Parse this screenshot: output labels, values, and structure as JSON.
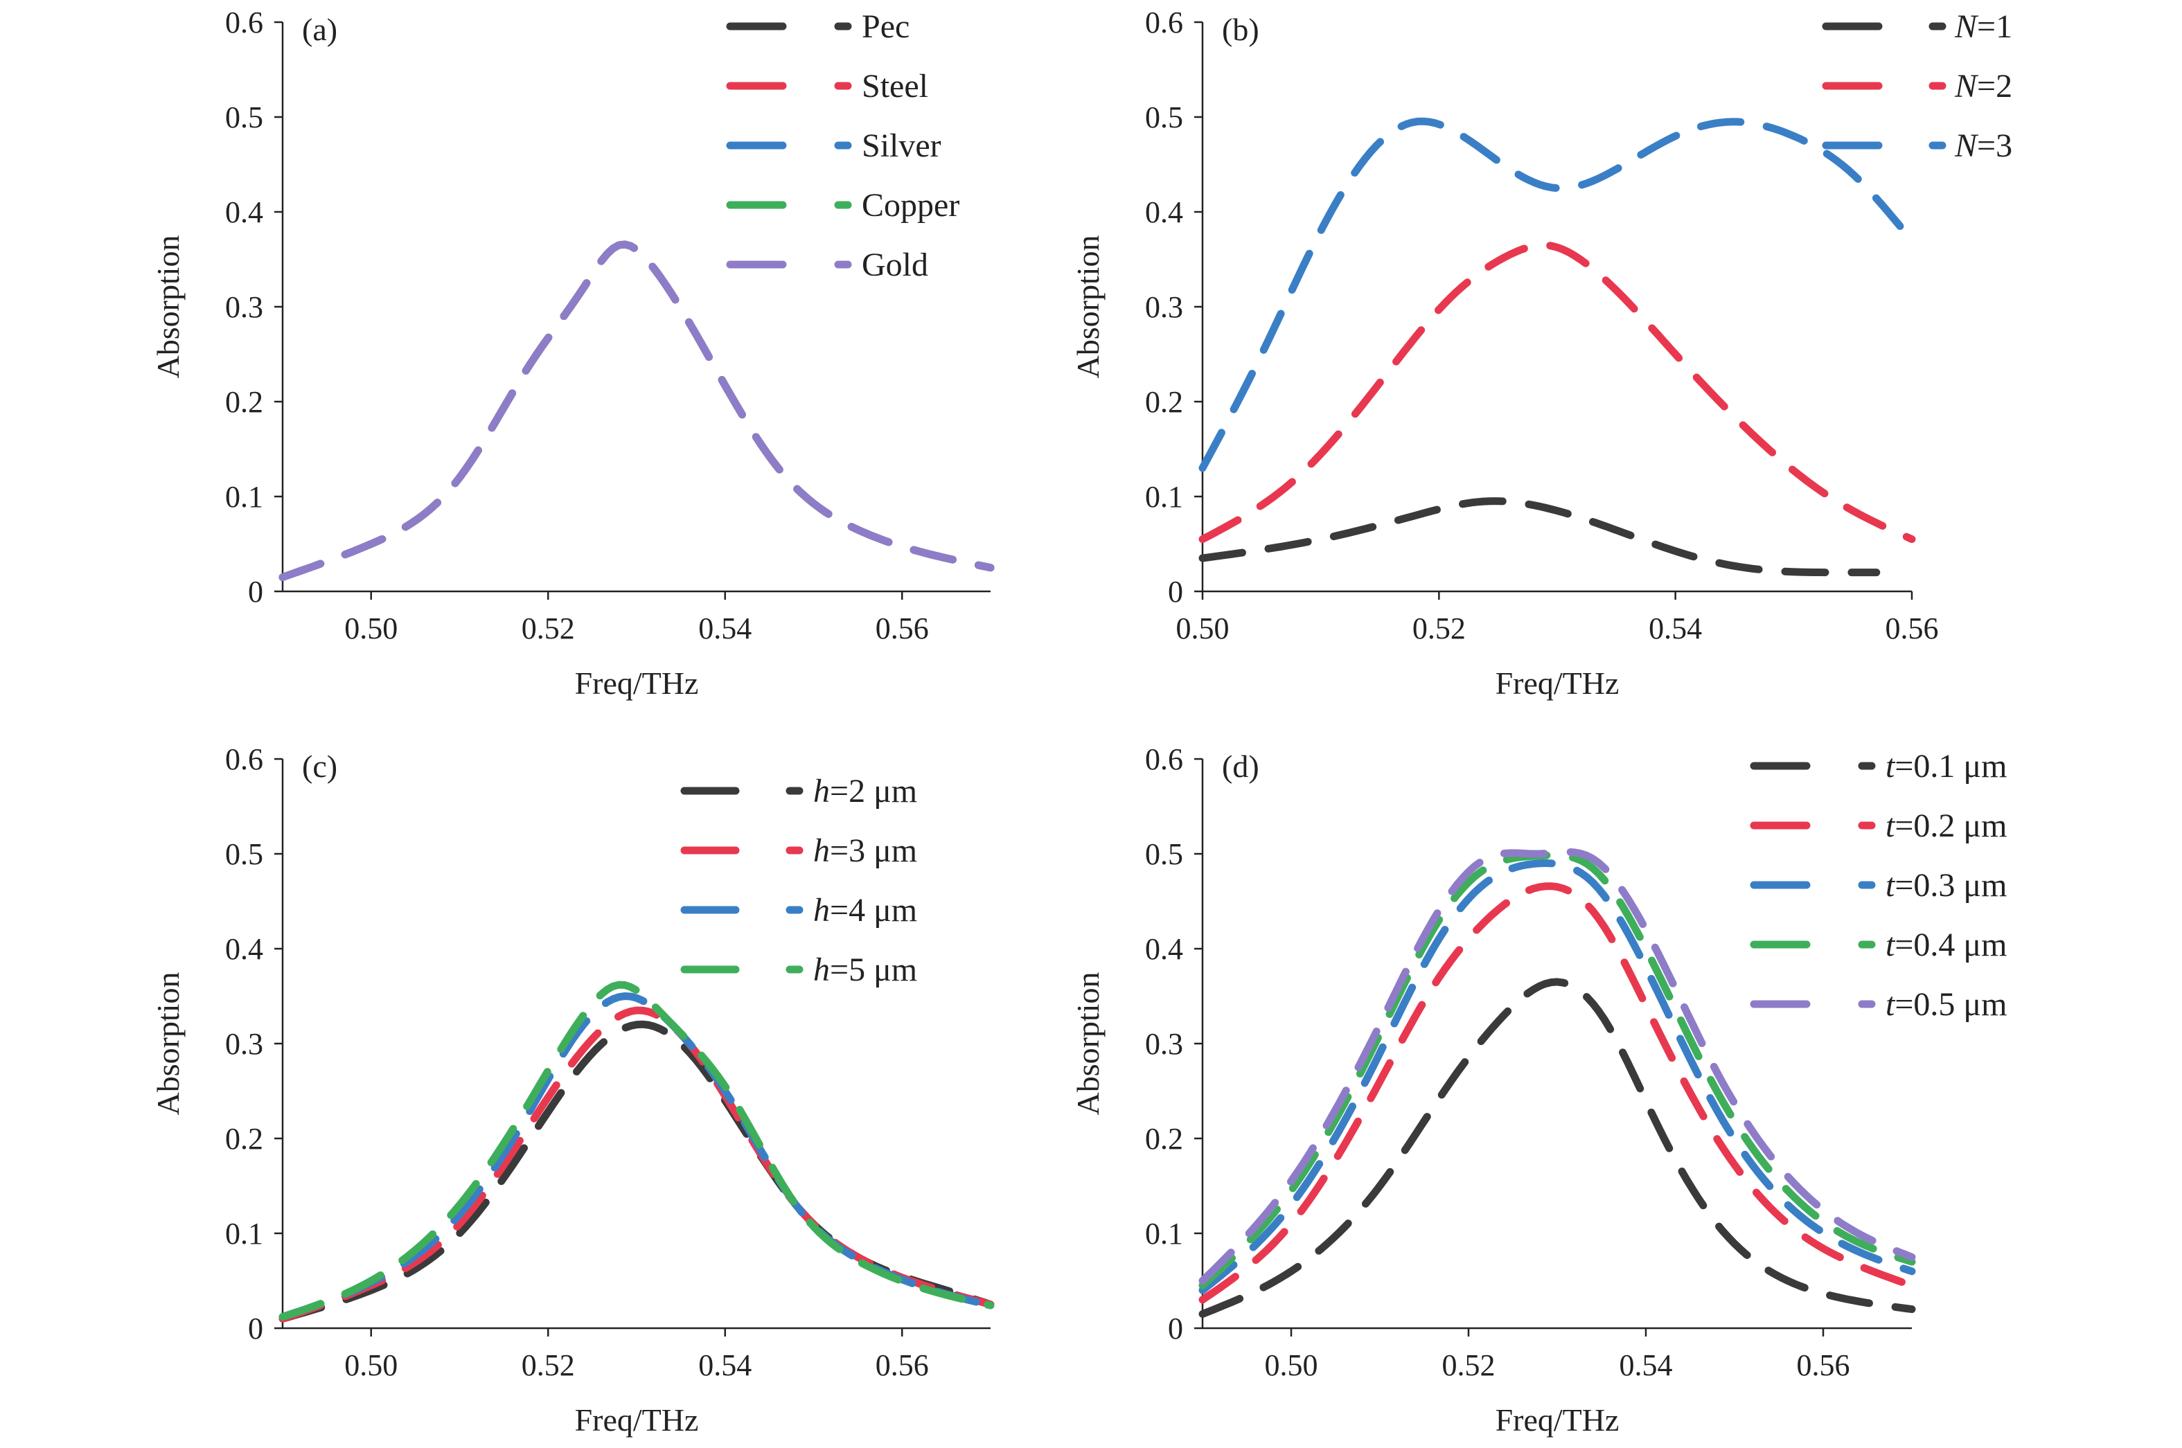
{
  "chart_data": [
    {
      "type": "line",
      "panel": "(a)",
      "xlabel": "Freq/THz",
      "ylabel": "Absorption",
      "xlim": [
        0.49,
        0.57
      ],
      "ylim": [
        0,
        0.6
      ],
      "xticks": [
        0.5,
        0.52,
        0.54,
        0.56
      ],
      "xtick_labels": [
        "0.50",
        "0.52",
        "0.54",
        "0.56"
      ],
      "yticks": [
        0,
        0.1,
        0.2,
        0.3,
        0.4,
        0.5,
        0.6
      ],
      "ytick_labels": [
        "0",
        "0.1",
        "0.2",
        "0.3",
        "0.4",
        "0.5",
        "0.6"
      ],
      "legend_position": "top-right",
      "series": [
        {
          "name": "Pec",
          "color": "#3a3a3a",
          "x": [
            0.49,
            0.5,
            0.51,
            0.518,
            0.524,
            0.528,
            0.532,
            0.538,
            0.546,
            0.555,
            0.565,
            0.57
          ],
          "y": [
            0.015,
            0.05,
            0.12,
            0.24,
            0.32,
            0.365,
            0.34,
            0.25,
            0.13,
            0.065,
            0.035,
            0.025
          ]
        },
        {
          "name": "Steel",
          "color": "#e8384f",
          "x": [
            0.49,
            0.5,
            0.51,
            0.518,
            0.524,
            0.528,
            0.532,
            0.538,
            0.546,
            0.555,
            0.565,
            0.57
          ],
          "y": [
            0.015,
            0.05,
            0.12,
            0.24,
            0.32,
            0.365,
            0.34,
            0.25,
            0.13,
            0.065,
            0.035,
            0.025
          ]
        },
        {
          "name": "Silver",
          "color": "#3a7fc6",
          "x": [
            0.49,
            0.5,
            0.51,
            0.518,
            0.524,
            0.528,
            0.532,
            0.538,
            0.546,
            0.555,
            0.565,
            0.57
          ],
          "y": [
            0.015,
            0.05,
            0.12,
            0.24,
            0.32,
            0.365,
            0.34,
            0.25,
            0.13,
            0.065,
            0.035,
            0.025
          ]
        },
        {
          "name": "Copper",
          "color": "#3fae5a",
          "x": [
            0.49,
            0.5,
            0.51,
            0.518,
            0.524,
            0.528,
            0.532,
            0.538,
            0.546,
            0.555,
            0.565,
            0.57
          ],
          "y": [
            0.015,
            0.05,
            0.12,
            0.24,
            0.32,
            0.365,
            0.34,
            0.25,
            0.13,
            0.065,
            0.035,
            0.025
          ]
        },
        {
          "name": "Gold",
          "color": "#8f7cc8",
          "x": [
            0.49,
            0.5,
            0.51,
            0.518,
            0.524,
            0.528,
            0.532,
            0.538,
            0.546,
            0.555,
            0.565,
            0.57
          ],
          "y": [
            0.015,
            0.05,
            0.12,
            0.24,
            0.32,
            0.365,
            0.34,
            0.25,
            0.13,
            0.065,
            0.035,
            0.025
          ]
        }
      ]
    },
    {
      "type": "line",
      "panel": "(b)",
      "xlabel": "Freq/THz",
      "ylabel": "Absorption",
      "xlim": [
        0.5,
        0.56
      ],
      "ylim": [
        0,
        0.6
      ],
      "xticks": [
        0.5,
        0.52,
        0.54,
        0.56
      ],
      "xtick_labels": [
        "0.50",
        "0.52",
        "0.54",
        "0.56"
      ],
      "yticks": [
        0,
        0.1,
        0.2,
        0.3,
        0.4,
        0.5,
        0.6
      ],
      "ytick_labels": [
        "0",
        "0.1",
        "0.2",
        "0.3",
        "0.4",
        "0.5",
        "0.6"
      ],
      "legend_position": "top-right",
      "series": [
        {
          "name": "N=1",
          "legend_var": "N",
          "legend_rest": "=1",
          "color": "#3a3a3a",
          "x": [
            0.5,
            0.51,
            0.518,
            0.524,
            0.53,
            0.536,
            0.542,
            0.548,
            0.553,
            0.557
          ],
          "y": [
            0.035,
            0.055,
            0.08,
            0.095,
            0.085,
            0.06,
            0.035,
            0.022,
            0.02,
            0.02
          ]
        },
        {
          "name": "N=2",
          "legend_var": "N",
          "legend_rest": "=2",
          "color": "#e8384f",
          "x": [
            0.5,
            0.508,
            0.515,
            0.521,
            0.526,
            0.529,
            0.533,
            0.54,
            0.547,
            0.553,
            0.56
          ],
          "y": [
            0.055,
            0.12,
            0.22,
            0.31,
            0.355,
            0.365,
            0.34,
            0.25,
            0.16,
            0.1,
            0.055
          ]
        },
        {
          "name": "N=3",
          "legend_var": "N",
          "legend_rest": "=3",
          "color": "#3a7fc6",
          "x": [
            0.5,
            0.505,
            0.51,
            0.514,
            0.518,
            0.522,
            0.526,
            0.53,
            0.535,
            0.54,
            0.545,
            0.55,
            0.555,
            0.559
          ],
          "y": [
            0.13,
            0.25,
            0.38,
            0.46,
            0.495,
            0.48,
            0.445,
            0.425,
            0.445,
            0.48,
            0.495,
            0.48,
            0.44,
            0.385
          ]
        }
      ]
    },
    {
      "type": "line",
      "panel": "(c)",
      "xlabel": "Freq/THz",
      "ylabel": "Absorption",
      "xlim": [
        0.49,
        0.57
      ],
      "ylim": [
        0,
        0.6
      ],
      "xticks": [
        0.5,
        0.52,
        0.54,
        0.56
      ],
      "xtick_labels": [
        "0.50",
        "0.52",
        "0.54",
        "0.56"
      ],
      "yticks": [
        0,
        0.1,
        0.2,
        0.3,
        0.4,
        0.5,
        0.6
      ],
      "ytick_labels": [
        "0",
        "0.1",
        "0.2",
        "0.3",
        "0.4",
        "0.5",
        "0.6"
      ],
      "legend_position": "top-right",
      "series": [
        {
          "name": "h=2 μm",
          "legend_var": "h",
          "legend_rest": "=2 μm",
          "color": "#3a3a3a",
          "x": [
            0.49,
            0.5,
            0.51,
            0.518,
            0.525,
            0.53,
            0.535,
            0.54,
            0.548,
            0.556,
            0.565,
            0.57
          ],
          "y": [
            0.01,
            0.04,
            0.1,
            0.2,
            0.29,
            0.32,
            0.3,
            0.24,
            0.13,
            0.07,
            0.04,
            0.025
          ]
        },
        {
          "name": "h=3 μm",
          "legend_var": "h",
          "legend_rest": "=3 μm",
          "color": "#e8384f",
          "x": [
            0.49,
            0.5,
            0.51,
            0.518,
            0.525,
            0.53,
            0.535,
            0.54,
            0.548,
            0.556,
            0.565,
            0.57
          ],
          "y": [
            0.01,
            0.045,
            0.11,
            0.215,
            0.305,
            0.335,
            0.31,
            0.245,
            0.13,
            0.07,
            0.038,
            0.025
          ]
        },
        {
          "name": "h=4 μm",
          "legend_var": "h",
          "legend_rest": "=4 μm",
          "color": "#3a7fc6",
          "x": [
            0.49,
            0.5,
            0.51,
            0.518,
            0.524,
            0.529,
            0.534,
            0.54,
            0.548,
            0.556,
            0.565,
            0.57
          ],
          "y": [
            0.012,
            0.048,
            0.12,
            0.23,
            0.32,
            0.35,
            0.32,
            0.25,
            0.13,
            0.068,
            0.036,
            0.024
          ]
        },
        {
          "name": "h=5 μm",
          "legend_var": "h",
          "legend_rest": "=5 μm",
          "color": "#3fae5a",
          "x": [
            0.49,
            0.5,
            0.51,
            0.518,
            0.524,
            0.528,
            0.533,
            0.54,
            0.548,
            0.556,
            0.565,
            0.57
          ],
          "y": [
            0.012,
            0.05,
            0.13,
            0.24,
            0.33,
            0.362,
            0.33,
            0.255,
            0.13,
            0.066,
            0.035,
            0.024
          ]
        }
      ]
    },
    {
      "type": "line",
      "panel": "(d)",
      "xlabel": "Freq/THz",
      "ylabel": "Absorption",
      "xlim": [
        0.49,
        0.57
      ],
      "ylim": [
        0,
        0.6
      ],
      "xticks": [
        0.5,
        0.52,
        0.54,
        0.56
      ],
      "xtick_labels": [
        "0.50",
        "0.52",
        "0.54",
        "0.56"
      ],
      "yticks": [
        0,
        0.1,
        0.2,
        0.3,
        0.4,
        0.5,
        0.6
      ],
      "ytick_labels": [
        "0",
        "0.1",
        "0.2",
        "0.3",
        "0.4",
        "0.5",
        "0.6"
      ],
      "legend_position": "top-right",
      "series": [
        {
          "name": "t=0.1 μm",
          "legend_var": "t",
          "legend_rest": "=0.1 μm",
          "color": "#3a3a3a",
          "x": [
            0.49,
            0.5,
            0.51,
            0.518,
            0.524,
            0.53,
            0.535,
            0.541,
            0.548,
            0.556,
            0.563,
            0.57
          ],
          "y": [
            0.015,
            0.06,
            0.15,
            0.26,
            0.33,
            0.365,
            0.33,
            0.22,
            0.11,
            0.05,
            0.03,
            0.02
          ]
        },
        {
          "name": "t=0.2 μm",
          "legend_var": "t",
          "legend_rest": "=0.2 μm",
          "color": "#e8384f",
          "x": [
            0.49,
            0.5,
            0.51,
            0.516,
            0.522,
            0.528,
            0.534,
            0.54,
            0.548,
            0.556,
            0.563,
            0.57
          ],
          "y": [
            0.03,
            0.11,
            0.26,
            0.36,
            0.43,
            0.465,
            0.44,
            0.34,
            0.2,
            0.11,
            0.07,
            0.045
          ]
        },
        {
          "name": "t=0.3 μm",
          "legend_var": "t",
          "legend_rest": "=0.3 μm",
          "color": "#3a7fc6",
          "x": [
            0.49,
            0.5,
            0.51,
            0.516,
            0.522,
            0.528,
            0.534,
            0.54,
            0.548,
            0.556,
            0.563,
            0.57
          ],
          "y": [
            0.04,
            0.13,
            0.29,
            0.4,
            0.47,
            0.49,
            0.47,
            0.38,
            0.23,
            0.13,
            0.085,
            0.06
          ]
        },
        {
          "name": "t=0.4 μm",
          "legend_var": "t",
          "legend_rest": "=0.4 μm",
          "color": "#3fae5a",
          "x": [
            0.49,
            0.5,
            0.51,
            0.516,
            0.522,
            0.528,
            0.534,
            0.54,
            0.548,
            0.556,
            0.563,
            0.57
          ],
          "y": [
            0.045,
            0.145,
            0.31,
            0.42,
            0.485,
            0.498,
            0.485,
            0.4,
            0.25,
            0.145,
            0.095,
            0.07
          ]
        },
        {
          "name": "t=0.5 μm",
          "legend_var": "t",
          "legend_rest": "=0.5 μm",
          "color": "#8f7cc8",
          "x": [
            0.49,
            0.5,
            0.51,
            0.516,
            0.522,
            0.528,
            0.534,
            0.54,
            0.548,
            0.556,
            0.563,
            0.57
          ],
          "y": [
            0.05,
            0.155,
            0.32,
            0.43,
            0.495,
            0.5,
            0.495,
            0.42,
            0.27,
            0.16,
            0.105,
            0.075
          ]
        }
      ]
    }
  ]
}
